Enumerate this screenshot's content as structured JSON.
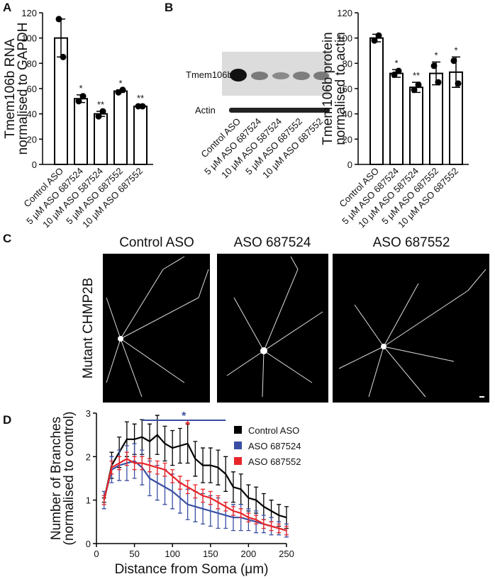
{
  "figure": {
    "panel_labels": [
      "A",
      "B",
      "C",
      "D"
    ],
    "blot": {
      "bands": [
        "Tmem106b",
        "Actin"
      ],
      "lanes": [
        "Control ASO",
        "5 μM ASO 687524",
        "10 μM ASO 587524",
        "5 μM ASO 687552",
        "10 μM ASO 687552"
      ]
    },
    "micrographs": {
      "row_label": "Mutant CHMP2B",
      "titles": [
        "Control ASO",
        "ASO 687524",
        "ASO 687552"
      ]
    }
  },
  "chart_data": [
    {
      "type": "bar",
      "ylabel": [
        "Tmem106b RNA",
        "normalised to GAPDH"
      ],
      "categories": [
        "Control ASO",
        "5 μM ASO 687524",
        "10 μM ASO 587524",
        "5 μM ASO 687552",
        "10 μM ASO 687552"
      ],
      "values": [
        100,
        52,
        40,
        58,
        46
      ],
      "errors": [
        15,
        3,
        2,
        1,
        1
      ],
      "points": [
        [
          115,
          85
        ],
        [
          50,
          54
        ],
        [
          38,
          42
        ],
        [
          57,
          59
        ],
        [
          46,
          46
        ]
      ],
      "significance": [
        null,
        "*",
        "**",
        "*",
        "**"
      ],
      "color": "#ffffff",
      "ylim": [
        0,
        120
      ],
      "yticks": [
        0,
        20,
        40,
        60,
        80,
        100,
        120
      ]
    },
    {
      "type": "bar",
      "ylabel": [
        "Tmem106b protein",
        "normalised to actin"
      ],
      "categories": [
        "Control ASO",
        "5 μM ASO 687524",
        "10 μM ASO 587524",
        "5 μM ASO 687552",
        "10 μM ASO 687552"
      ],
      "values": [
        100,
        72,
        61,
        72,
        73
      ],
      "errors": [
        3,
        3,
        4,
        9,
        12
      ],
      "points": [
        [
          98,
          102
        ],
        [
          71,
          74
        ],
        [
          59,
          63
        ],
        [
          78,
          65
        ],
        [
          82,
          64
        ]
      ],
      "significance": [
        null,
        "*",
        "**",
        "*",
        "*"
      ],
      "color": "#ffffff",
      "ylim": [
        0,
        120
      ],
      "yticks": [
        0,
        20,
        40,
        60,
        80,
        100,
        120
      ]
    },
    {
      "type": "line",
      "xlabel": "Distance from Soma (μm)",
      "ylabel": [
        "Number of Branches",
        "(normalised to control)"
      ],
      "x": [
        10,
        20,
        30,
        40,
        50,
        60,
        70,
        80,
        90,
        100,
        110,
        120,
        130,
        140,
        150,
        160,
        170,
        180,
        190,
        200,
        210,
        220,
        230,
        240,
        250
      ],
      "series": [
        {
          "name": "Control ASO",
          "color": "#000000",
          "values": [
            1.0,
            1.8,
            2.1,
            2.4,
            2.4,
            2.45,
            2.35,
            2.5,
            2.3,
            2.2,
            2.25,
            2.3,
            1.95,
            1.8,
            1.8,
            1.75,
            1.6,
            1.3,
            1.25,
            1.05,
            1.0,
            0.85,
            0.75,
            0.65,
            0.6
          ],
          "errors": [
            0.05,
            0.3,
            0.35,
            0.4,
            0.35,
            0.4,
            0.4,
            0.45,
            0.4,
            0.4,
            0.4,
            0.45,
            0.4,
            0.4,
            0.4,
            0.4,
            0.4,
            0.35,
            0.35,
            0.3,
            0.3,
            0.3,
            0.25,
            0.25,
            0.25
          ]
        },
        {
          "name": "ASO 687524",
          "color": "#3a4fa3",
          "values": [
            1.0,
            1.7,
            1.8,
            1.85,
            1.9,
            1.75,
            1.5,
            1.4,
            1.3,
            1.2,
            1.05,
            0.9,
            0.85,
            0.8,
            0.75,
            0.7,
            0.65,
            0.6,
            0.6,
            0.55,
            0.5,
            0.45,
            0.4,
            0.35,
            0.3
          ],
          "errors": [
            0.2,
            0.3,
            0.35,
            0.4,
            0.4,
            0.4,
            0.4,
            0.4,
            0.4,
            0.4,
            0.35,
            0.35,
            0.35,
            0.35,
            0.35,
            0.35,
            0.3,
            0.3,
            0.3,
            0.25,
            0.25,
            0.2,
            0.2,
            0.15,
            0.15
          ]
        },
        {
          "name": "ASO 687552",
          "color": "#e8262a",
          "values": [
            1.0,
            1.75,
            1.85,
            1.95,
            1.85,
            1.85,
            1.8,
            1.75,
            1.7,
            1.55,
            1.4,
            1.3,
            1.2,
            1.1,
            1.05,
            0.95,
            0.85,
            0.75,
            0.7,
            0.6,
            0.55,
            0.45,
            0.4,
            0.35,
            0.3
          ],
          "errors": [
            0.1,
            0.15,
            0.15,
            0.15,
            0.15,
            0.15,
            0.15,
            0.15,
            0.15,
            0.15,
            0.15,
            0.15,
            0.15,
            0.15,
            0.15,
            0.15,
            0.1,
            0.1,
            0.1,
            0.1,
            0.1,
            0.1,
            0.1,
            0.1,
            0.1
          ]
        }
      ],
      "annotations": [
        {
          "text": "*",
          "color": "#3a4fa3",
          "x": [
            60,
            170
          ]
        },
        {
          "text": "*",
          "color": "#e8262a",
          "x": [
            120,
            120
          ]
        }
      ],
      "legend": "upper right",
      "xlim": [
        0,
        250
      ],
      "ylim": [
        0,
        3
      ],
      "xticks": [
        0,
        50,
        100,
        150,
        200,
        250
      ],
      "yticks": [
        0,
        1,
        2,
        3
      ]
    }
  ]
}
